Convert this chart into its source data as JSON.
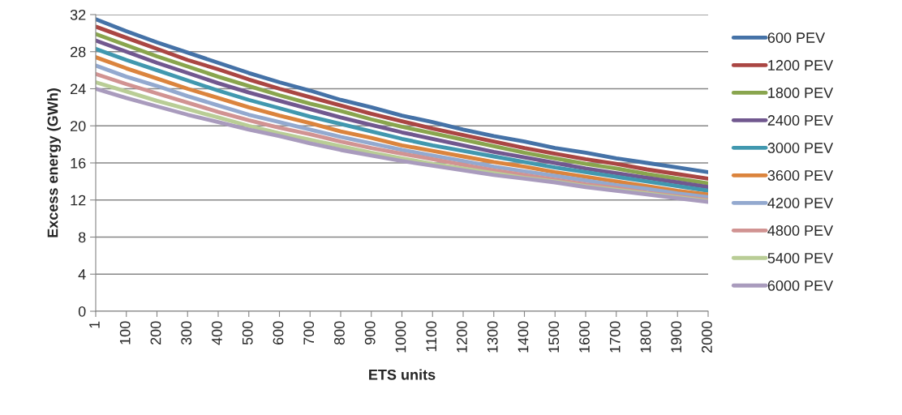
{
  "chart_data": {
    "type": "line",
    "xlabel": "ETS units",
    "ylabel": "Excess energy (GWh)",
    "categories": [
      "1",
      "100",
      "200",
      "300",
      "400",
      "500",
      "600",
      "700",
      "800",
      "900",
      "1000",
      "1100",
      "1200",
      "1300",
      "1400",
      "1500",
      "1600",
      "1700",
      "1800",
      "1900",
      "2000"
    ],
    "ylim": [
      0,
      32
    ],
    "yticks": [
      0,
      4,
      8,
      12,
      16,
      20,
      24,
      28,
      32
    ],
    "grid": "y",
    "legend": "right",
    "marker": "none",
    "line_style": "solid",
    "series": [
      {
        "name": "600 PEV",
        "color": "#4572a7",
        "values": [
          31.5,
          30.2,
          29.0,
          27.9,
          26.8,
          25.7,
          24.7,
          23.8,
          22.8,
          22.0,
          21.1,
          20.4,
          19.6,
          18.9,
          18.3,
          17.6,
          17.1,
          16.5,
          16.0,
          15.5,
          15.0
        ]
      },
      {
        "name": "1200 PEV",
        "color": "#aa4643",
        "values": [
          30.7,
          29.5,
          28.3,
          27.1,
          26.1,
          25.0,
          24.0,
          23.1,
          22.2,
          21.3,
          20.5,
          19.7,
          19.0,
          18.3,
          17.6,
          17.0,
          16.4,
          15.9,
          15.3,
          14.8,
          14.3
        ]
      },
      {
        "name": "1800 PEV",
        "color": "#89a54e",
        "values": [
          29.9,
          28.7,
          27.5,
          26.4,
          25.3,
          24.3,
          23.3,
          22.4,
          21.6,
          20.7,
          19.9,
          19.2,
          18.5,
          17.8,
          17.1,
          16.5,
          15.9,
          15.4,
          14.8,
          14.3,
          13.8
        ]
      },
      {
        "name": "2400 PEV",
        "color": "#71588f",
        "values": [
          29.2,
          28.0,
          26.8,
          25.7,
          24.6,
          23.6,
          22.7,
          21.8,
          20.9,
          20.1,
          19.3,
          18.6,
          17.9,
          17.2,
          16.6,
          16.0,
          15.4,
          14.9,
          14.4,
          13.9,
          13.4
        ]
      },
      {
        "name": "3000 PEV",
        "color": "#4198af",
        "values": [
          28.3,
          27.1,
          26.0,
          24.9,
          23.8,
          22.8,
          21.9,
          21.0,
          20.2,
          19.4,
          18.6,
          17.9,
          17.3,
          16.7,
          16.1,
          15.5,
          15.0,
          14.5,
          14.0,
          13.5,
          13.0
        ]
      },
      {
        "name": "3600 PEV",
        "color": "#db843d",
        "values": [
          27.4,
          26.2,
          25.1,
          24.0,
          23.0,
          22.0,
          21.1,
          20.3,
          19.4,
          18.7,
          17.9,
          17.3,
          16.7,
          16.1,
          15.6,
          15.0,
          14.5,
          14.0,
          13.5,
          13.0,
          12.6
        ]
      },
      {
        "name": "4200 PEV",
        "color": "#93a9cf",
        "values": [
          26.5,
          25.3,
          24.3,
          23.2,
          22.2,
          21.2,
          20.4,
          19.6,
          18.8,
          18.1,
          17.4,
          16.8,
          16.2,
          15.6,
          15.1,
          14.6,
          14.1,
          13.6,
          13.2,
          12.7,
          12.3
        ]
      },
      {
        "name": "4800 PEV",
        "color": "#d19392",
        "values": [
          25.6,
          24.5,
          23.5,
          22.5,
          21.5,
          20.6,
          19.8,
          19.1,
          18.3,
          17.6,
          17.0,
          16.4,
          15.8,
          15.2,
          14.7,
          14.2,
          13.7,
          13.3,
          12.8,
          12.4,
          12.0
        ]
      },
      {
        "name": "5400 PEV",
        "color": "#b9cd96",
        "values": [
          24.7,
          23.7,
          22.7,
          21.8,
          20.9,
          20.0,
          19.2,
          18.5,
          17.8,
          17.1,
          16.5,
          15.9,
          15.4,
          14.9,
          14.4,
          14.0,
          13.5,
          13.1,
          12.7,
          12.3,
          11.9
        ]
      },
      {
        "name": "6000 PEV",
        "color": "#a99bbd",
        "values": [
          24.0,
          23.0,
          22.1,
          21.2,
          20.4,
          19.6,
          18.9,
          18.1,
          17.4,
          16.8,
          16.2,
          15.7,
          15.2,
          14.7,
          14.3,
          13.9,
          13.4,
          13.0,
          12.6,
          12.2,
          11.8
        ]
      }
    ]
  }
}
